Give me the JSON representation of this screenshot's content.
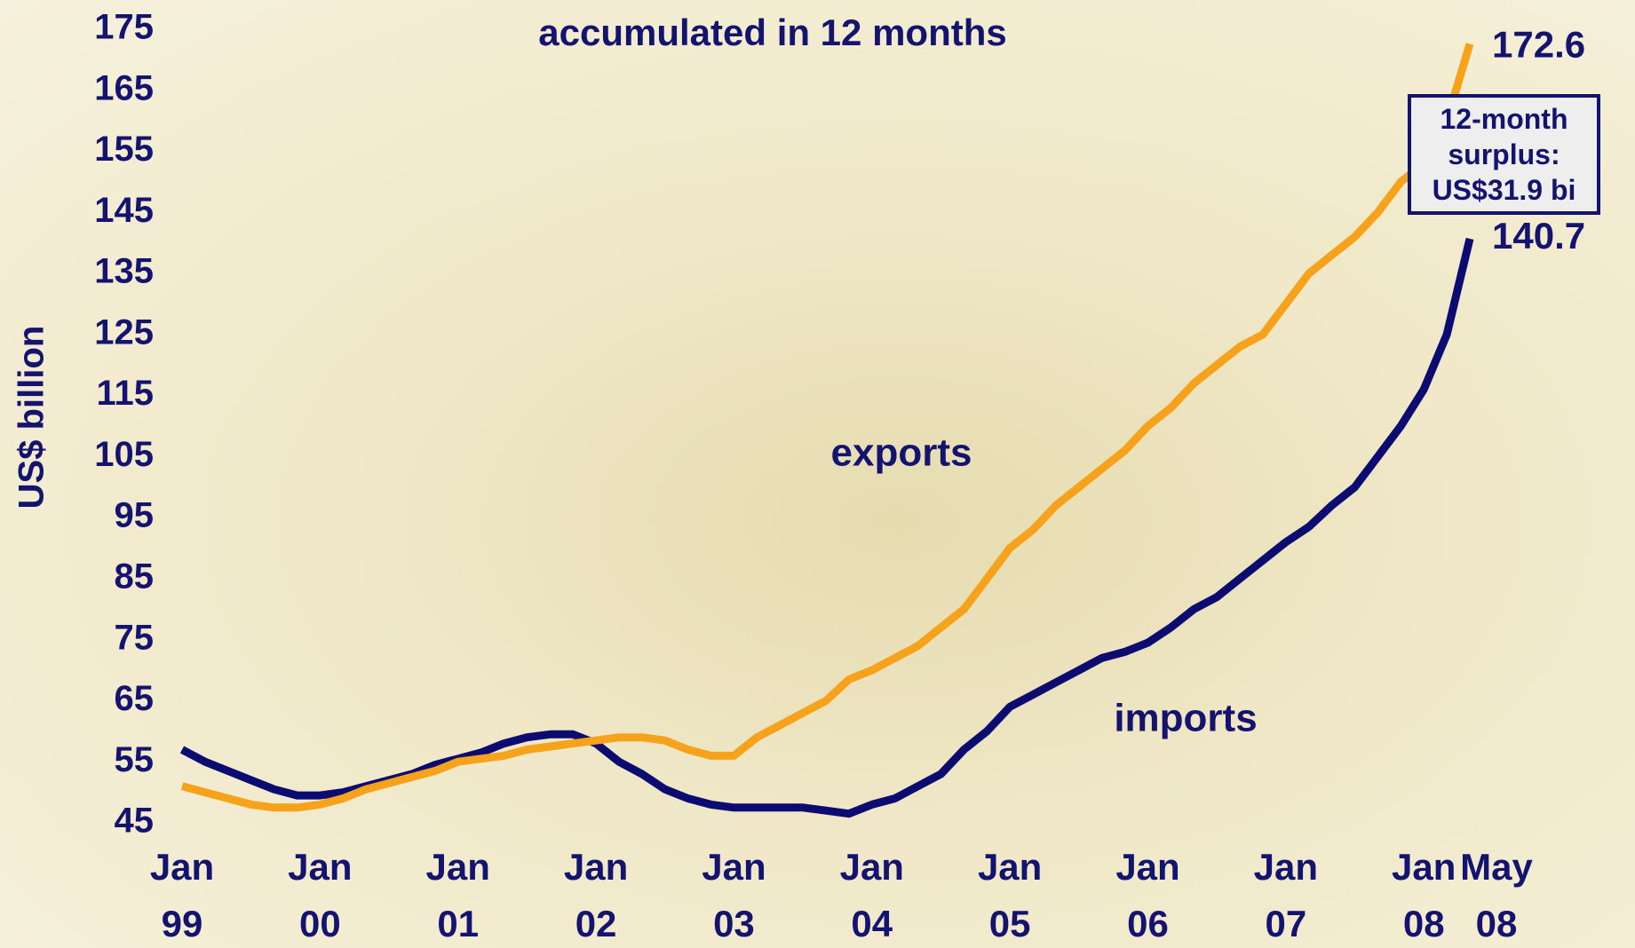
{
  "chart_data": {
    "type": "line",
    "title": "accumulated in 12 months",
    "y_label": "US$ billion",
    "categories": [
      "Jan 99",
      null,
      null,
      null,
      null,
      null,
      "Jan 00",
      null,
      null,
      null,
      null,
      null,
      "Jan 01",
      null,
      null,
      null,
      null,
      null,
      "Jan 02",
      null,
      null,
      null,
      null,
      null,
      "Jan 03",
      null,
      null,
      null,
      null,
      null,
      "Jan 04",
      null,
      null,
      null,
      null,
      null,
      "Jan 05",
      null,
      null,
      null,
      null,
      null,
      "Jan 06",
      null,
      null,
      null,
      null,
      null,
      "Jan 07",
      null,
      null,
      null,
      null,
      null,
      "Jan 08",
      null,
      "May 08"
    ],
    "series": [
      {
        "name": "exports",
        "color": "#f7a21b",
        "values": [
          51,
          50,
          49,
          48,
          47.5,
          47.5,
          48,
          49,
          50.5,
          51.5,
          52.5,
          53.5,
          55,
          55.5,
          56,
          57,
          57.5,
          58,
          58.5,
          59,
          59,
          58.5,
          57,
          56,
          56,
          59,
          61,
          63,
          65,
          68.5,
          70,
          72,
          74,
          77,
          80,
          85,
          90,
          93,
          97,
          100,
          103,
          106,
          110,
          113,
          117,
          120,
          123,
          125,
          130,
          135,
          138,
          141,
          145,
          150,
          153,
          160,
          172.6
        ]
      },
      {
        "name": "imports",
        "color": "#0b0b72",
        "values": [
          57,
          55,
          53.5,
          52,
          50.5,
          49.5,
          49.5,
          50,
          51,
          52,
          53,
          54.5,
          55.5,
          56.5,
          58,
          59,
          59.5,
          59.5,
          58,
          55,
          53,
          50.5,
          49,
          48,
          47.5,
          47.5,
          47.5,
          47.5,
          47,
          46.5,
          48,
          49,
          51,
          53,
          57,
          60,
          64,
          66,
          68,
          70,
          72,
          73,
          74.5,
          77,
          80,
          82,
          85,
          88,
          91,
          93.5,
          97,
          100,
          105,
          110,
          116,
          125,
          140.7
        ]
      }
    ],
    "annotation": "12-month surplus: US$31.9 bi",
    "ylim": [
      45,
      175
    ],
    "yticks": [
      45,
      55,
      65,
      75,
      85,
      95,
      105,
      115,
      125,
      135,
      145,
      155,
      165,
      175
    ],
    "grid": false
  }
}
